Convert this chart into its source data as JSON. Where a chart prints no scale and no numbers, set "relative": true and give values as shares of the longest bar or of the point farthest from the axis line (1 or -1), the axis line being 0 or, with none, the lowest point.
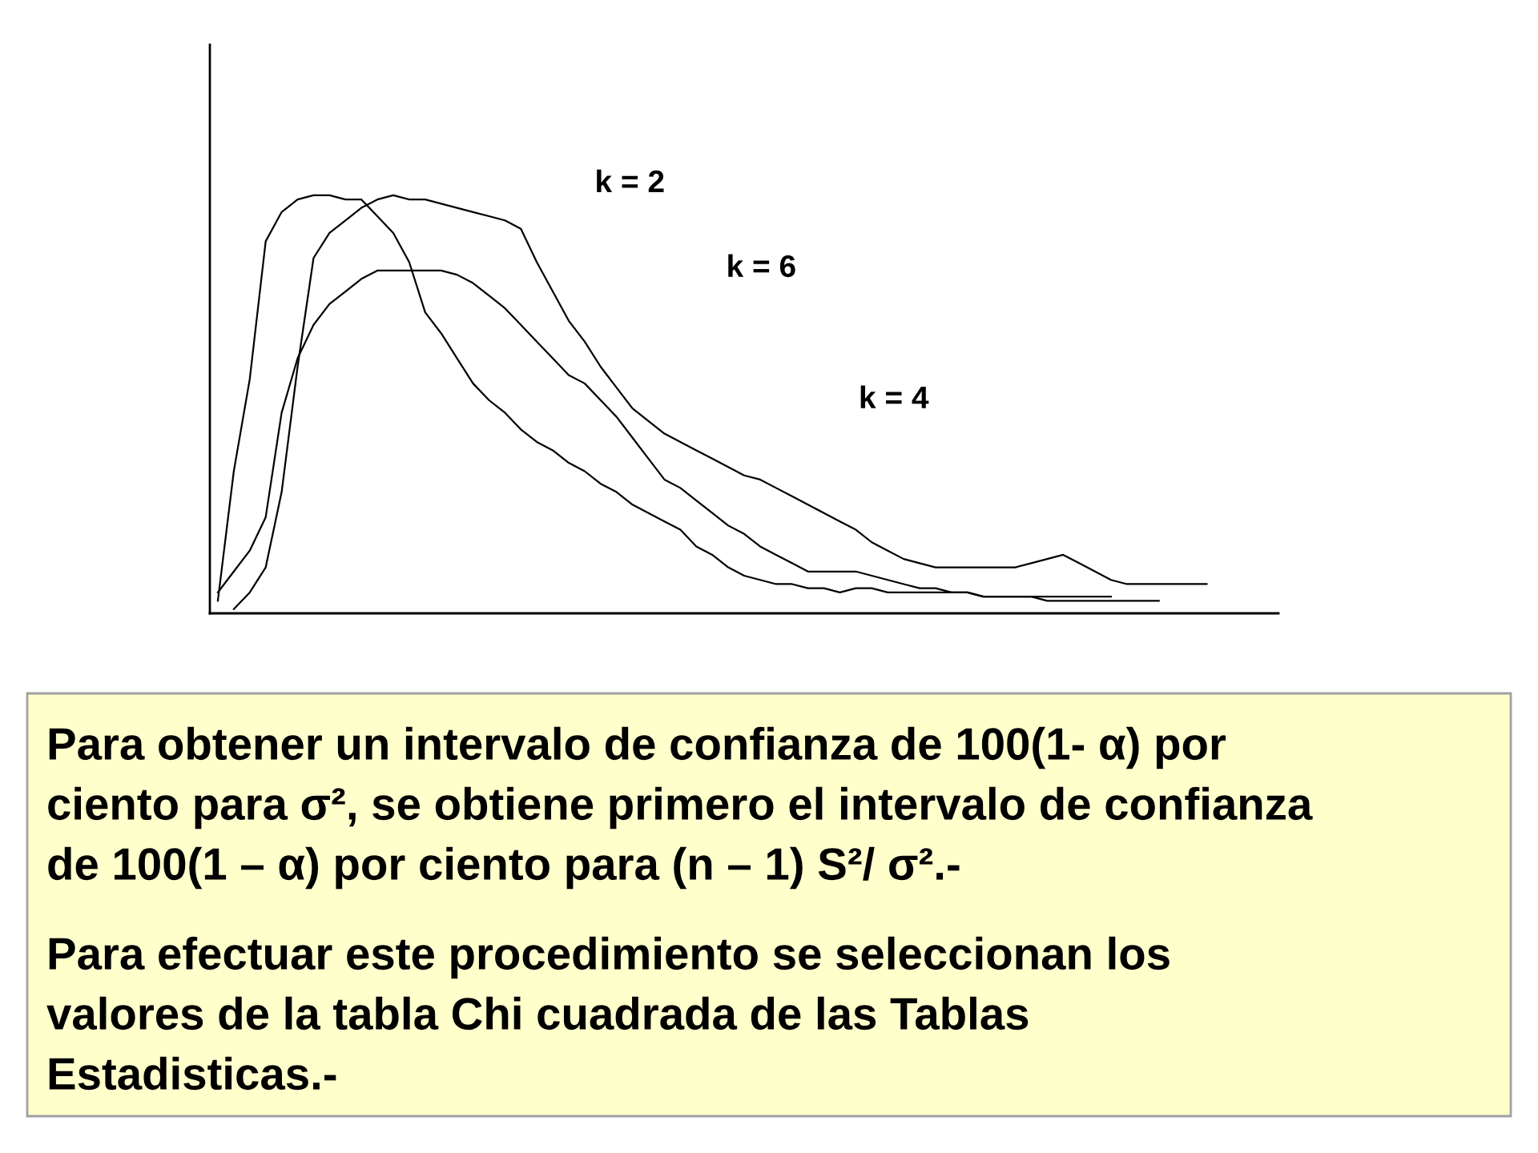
{
  "chart_data": {
    "type": "line",
    "relative": true,
    "line_style": "solid",
    "categories": [
      null,
      null,
      null,
      null,
      null,
      null,
      null,
      null,
      null,
      null,
      null,
      null,
      null,
      null,
      null,
      null,
      null,
      null,
      null,
      null,
      null,
      null,
      null,
      null,
      null,
      null,
      null,
      null,
      null,
      null,
      null,
      null,
      null,
      null,
      null,
      null,
      null,
      null,
      null,
      null,
      null,
      null,
      null,
      null,
      null,
      null,
      null,
      null,
      null,
      null,
      null,
      null,
      null,
      null,
      null,
      null,
      null,
      null,
      null,
      null,
      null,
      null,
      null,
      null,
      null,
      null,
      null
    ],
    "series": [
      {
        "color": "#000000",
        "values": [
          0.03,
          0.34,
          0.56,
          0.89,
          0.96,
          0.99,
          1.0,
          1.0,
          0.99,
          0.99,
          0.95,
          0.91,
          0.84,
          0.72,
          0.67,
          0.61,
          0.55,
          0.51,
          0.48,
          0.44,
          0.41,
          0.39,
          0.36,
          0.34,
          0.31,
          0.29,
          0.26,
          0.24,
          0.22,
          0.2,
          0.16,
          0.14,
          0.11,
          0.09,
          0.08,
          0.07,
          0.07,
          0.06,
          0.06,
          0.05,
          0.06,
          0.06,
          0.05,
          0.05,
          0.05,
          0.05,
          0.05,
          0.05,
          0.04,
          0.04,
          0.04,
          0.04,
          0.04,
          0.04,
          0.04,
          0.04,
          0.04,
          null,
          null,
          null,
          null,
          null,
          null,
          null,
          null,
          null,
          null
        ]
      },
      {
        "color": "#000000",
        "values": [
          null,
          0.01,
          0.05,
          0.11,
          0.29,
          0.59,
          0.85,
          0.91,
          0.94,
          0.97,
          0.99,
          1.0,
          0.99,
          0.99,
          0.98,
          0.97,
          0.96,
          0.95,
          0.94,
          0.92,
          0.84,
          0.77,
          0.7,
          0.65,
          0.59,
          0.54,
          0.49,
          0.46,
          0.43,
          0.41,
          0.39,
          0.37,
          0.35,
          0.33,
          0.32,
          0.3,
          0.28,
          0.26,
          0.24,
          0.22,
          0.2,
          0.17,
          0.15,
          0.13,
          0.12,
          0.11,
          0.11,
          0.11,
          0.11,
          0.11,
          0.11,
          0.12,
          0.13,
          0.14,
          0.12,
          0.1,
          0.08,
          0.07,
          0.07,
          0.07,
          0.07,
          0.07,
          0.07,
          null,
          null,
          null,
          null
        ]
      },
      {
        "color": "#000000",
        "values": [
          0.05,
          0.1,
          0.15,
          0.23,
          0.48,
          0.61,
          0.69,
          0.74,
          0.77,
          0.8,
          0.82,
          0.82,
          0.82,
          0.82,
          0.82,
          0.81,
          0.79,
          0.76,
          0.73,
          0.69,
          0.65,
          0.61,
          0.57,
          0.55,
          0.51,
          0.47,
          0.42,
          0.37,
          0.32,
          0.3,
          0.27,
          0.24,
          0.21,
          0.19,
          0.16,
          0.14,
          0.12,
          0.1,
          0.1,
          0.1,
          0.1,
          0.09,
          0.08,
          0.07,
          0.06,
          0.06,
          0.05,
          0.05,
          0.04,
          0.04,
          0.04,
          0.04,
          0.03,
          0.03,
          0.03,
          0.03,
          0.03,
          0.03,
          0.03,
          0.03,
          null,
          null,
          null,
          null,
          null,
          null,
          null
        ]
      }
    ],
    "annotations": [
      "k = 2",
      "k = 6",
      "k = 4",
      "Para obtener un intervalo de confianza de 100(1- α) por ciento para σ², se obtiene primero el intervalo de confianza de 100(1 – α) por ciento para (n – 1) S²/ σ².-",
      "Para efectuar este procedimiento se seleccionan los valores de la tabla Chi cuadrada de las Tablas Estadisticas.-"
    ]
  }
}
